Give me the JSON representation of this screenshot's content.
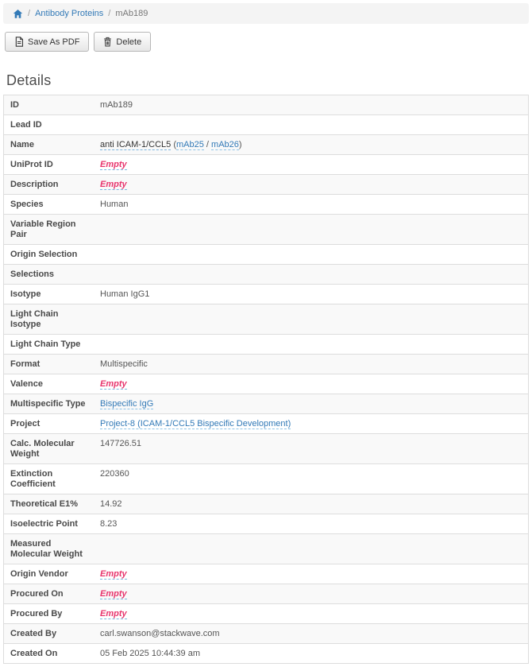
{
  "breadcrumb": {
    "separator": "/",
    "items": [
      {
        "label": "Antibody Proteins",
        "type": "link"
      },
      {
        "label": "mAb189",
        "type": "current"
      }
    ]
  },
  "toolbar": {
    "save_as_pdf_label": "Save As PDF",
    "delete_label": "Delete"
  },
  "section": {
    "title": "Details"
  },
  "details": {
    "rows": [
      {
        "label": "ID",
        "value": [
          {
            "t": "text",
            "v": "mAb189"
          }
        ]
      },
      {
        "label": "Lead ID",
        "value": []
      },
      {
        "label": "Name",
        "value": [
          {
            "t": "tip",
            "v": "anti ICAM-1/CCL5"
          },
          {
            "t": "text",
            "v": " ("
          },
          {
            "t": "link",
            "v": "mAb25"
          },
          {
            "t": "text",
            "v": " / "
          },
          {
            "t": "link",
            "v": "mAb26"
          },
          {
            "t": "text",
            "v": ")"
          }
        ]
      },
      {
        "label": "UniProt ID",
        "value": [
          {
            "t": "empty",
            "v": "Empty"
          }
        ]
      },
      {
        "label": "Description",
        "value": [
          {
            "t": "empty",
            "v": "Empty"
          }
        ]
      },
      {
        "label": "Species",
        "value": [
          {
            "t": "text",
            "v": "Human"
          }
        ]
      },
      {
        "label": "Variable Region Pair",
        "value": []
      },
      {
        "label": "Origin Selection",
        "value": []
      },
      {
        "label": "Selections",
        "value": []
      },
      {
        "label": "Isotype",
        "value": [
          {
            "t": "text",
            "v": "Human IgG1"
          }
        ]
      },
      {
        "label": "Light Chain Isotype",
        "value": []
      },
      {
        "label": "Light Chain Type",
        "value": []
      },
      {
        "label": "Format",
        "value": [
          {
            "t": "text",
            "v": "Multispecific"
          }
        ]
      },
      {
        "label": "Valence",
        "value": [
          {
            "t": "empty",
            "v": "Empty"
          }
        ]
      },
      {
        "label": "Multispecific Type",
        "value": [
          {
            "t": "link",
            "v": "Bispecific IgG"
          }
        ]
      },
      {
        "label": "Project",
        "value": [
          {
            "t": "link",
            "v": "Project-8 (ICAM-1/CCL5 Bispecific Development)"
          }
        ]
      },
      {
        "label": "Calc. Molecular Weight",
        "value": [
          {
            "t": "text",
            "v": "147726.51"
          }
        ]
      },
      {
        "label": "Extinction Coefficient",
        "value": [
          {
            "t": "text",
            "v": "220360"
          }
        ]
      },
      {
        "label": "Theoretical E1%",
        "value": [
          {
            "t": "text",
            "v": "14.92"
          }
        ]
      },
      {
        "label": "Isoelectric Point",
        "value": [
          {
            "t": "text",
            "v": "8.23"
          }
        ]
      },
      {
        "label": "Measured Molecular Weight",
        "value": []
      },
      {
        "label": "Origin Vendor",
        "value": [
          {
            "t": "empty",
            "v": "Empty"
          }
        ]
      },
      {
        "label": "Procured On",
        "value": [
          {
            "t": "empty",
            "v": "Empty"
          }
        ]
      },
      {
        "label": "Procured By",
        "value": [
          {
            "t": "empty",
            "v": "Empty"
          }
        ]
      },
      {
        "label": "Created By",
        "value": [
          {
            "t": "text",
            "v": "carl.swanson@stackwave.com"
          }
        ]
      },
      {
        "label": "Created On",
        "value": [
          {
            "t": "text",
            "v": "05 Feb 2025 10:44:39 am"
          }
        ]
      }
    ]
  },
  "colors": {
    "link_blue": "#337ab7",
    "empty_pink": "#e8356d",
    "dashed_underline_blue": "#7db6e0",
    "row_stripe": "#f9f9f9",
    "breadcrumb_bg": "#f4f4f4"
  }
}
